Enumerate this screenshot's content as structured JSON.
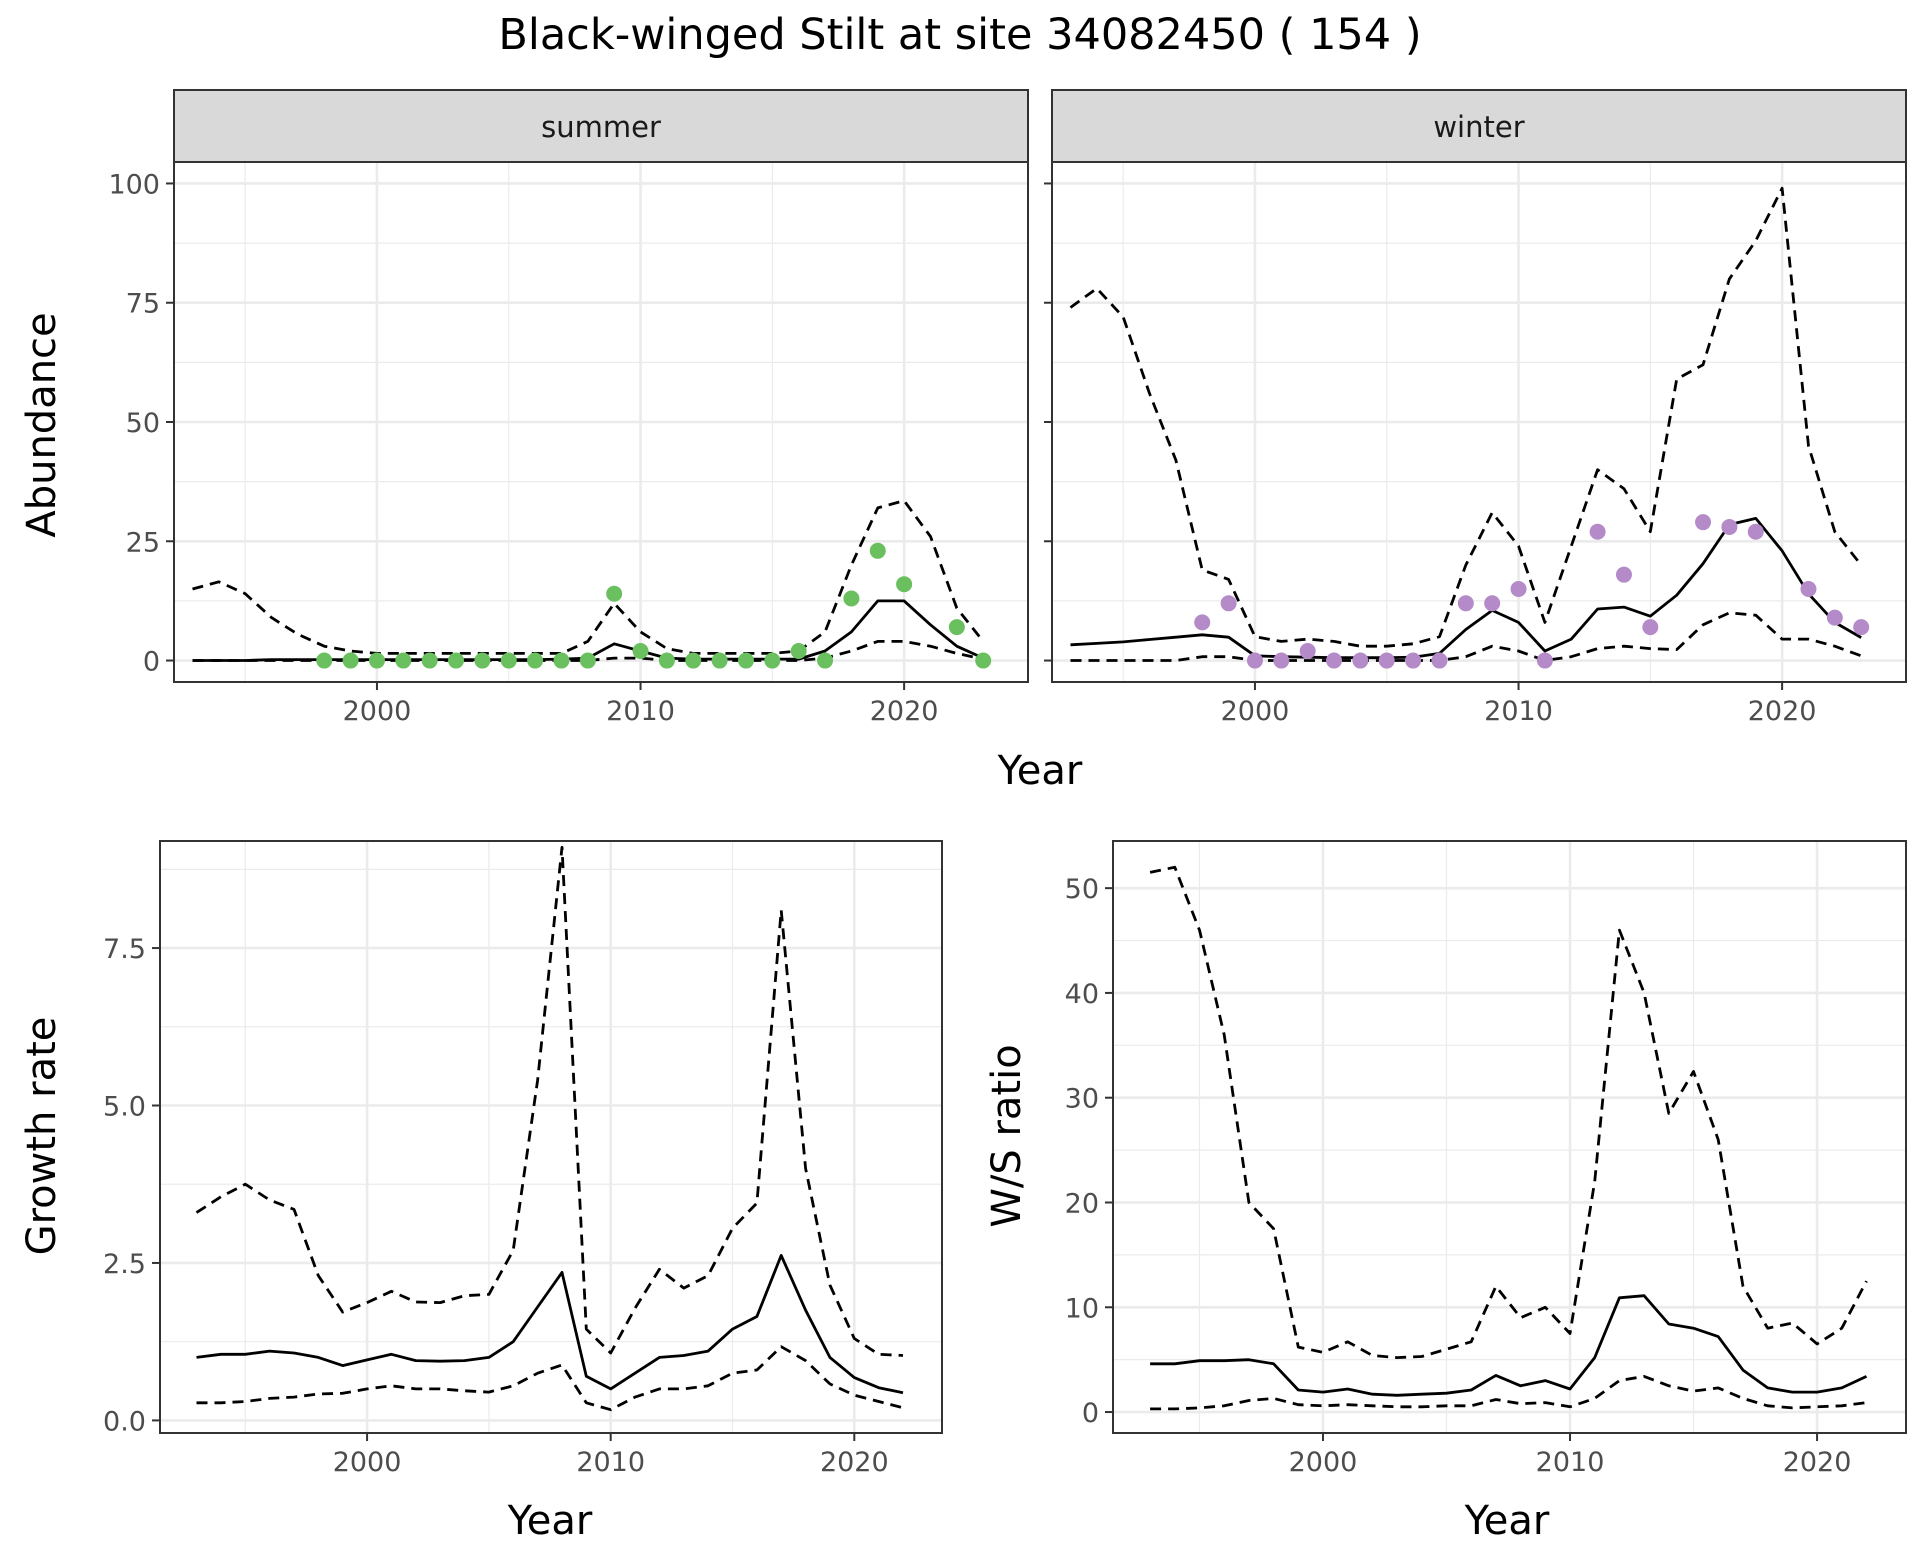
{
  "title": "Black-winged Stilt at site 34082450 ( 154 )",
  "abundance_panel": {
    "xlabel": "Year",
    "ylabel": "Abundance",
    "facets": [
      "summer",
      "winter"
    ]
  },
  "growth_panel": {
    "xlabel": "Year",
    "ylabel": "Growth rate"
  },
  "ratio_panel": {
    "xlabel": "Year",
    "ylabel": "W/S ratio"
  },
  "colors": {
    "summer_points": "#6abf5e",
    "winter_points": "#b48ac8",
    "lines": "#000000",
    "grid": "#ebebeb",
    "strip_bg": "#d9d9d9"
  },
  "chart_data": [
    {
      "type": "line",
      "facet": "summer",
      "xlabel": "Year",
      "ylabel": "Abundance",
      "xlim": [
        1992.3,
        2024.7
      ],
      "ylim": [
        -4.5,
        104.5
      ],
      "x_ticks": [
        2000,
        2010,
        2020
      ],
      "y_ticks": [
        0,
        25,
        50,
        75,
        100
      ],
      "grid": true,
      "lines": [
        {
          "role": "estimate",
          "style": "solid",
          "x": [
            1993,
            1994,
            1995,
            1996,
            1997,
            1998,
            1999,
            2000,
            2001,
            2002,
            2003,
            2004,
            2005,
            2006,
            2007,
            2008,
            2009,
            2010,
            2011,
            2012,
            2013,
            2014,
            2015,
            2016,
            2017,
            2018,
            2019,
            2020,
            2021,
            2022,
            2023
          ],
          "y": [
            0,
            0,
            0,
            0.2,
            0.2,
            0.2,
            0.2,
            0.2,
            0.2,
            0.2,
            0.2,
            0.2,
            0.2,
            0.2,
            0.3,
            0.5,
            3.5,
            2,
            0.5,
            0.3,
            0.3,
            0.3,
            0.3,
            0.3,
            2,
            6,
            12.5,
            12.5,
            7.5,
            3,
            0.5
          ]
        },
        {
          "role": "upper",
          "style": "dashed",
          "x": [
            1993,
            1994,
            1995,
            1996,
            1997,
            1998,
            1999,
            2000,
            2001,
            2002,
            2003,
            2004,
            2005,
            2006,
            2007,
            2008,
            2009,
            2010,
            2011,
            2012,
            2013,
            2014,
            2015,
            2016,
            2017,
            2018,
            2019,
            2020,
            2021,
            2022,
            2023
          ],
          "y": [
            15,
            16.5,
            14,
            9,
            5.5,
            3,
            2,
            1.5,
            1.5,
            1.5,
            1.5,
            1.5,
            1.5,
            1.5,
            1.5,
            4,
            12,
            6,
            2.5,
            1.5,
            1.5,
            1.5,
            1.5,
            2,
            6,
            20,
            32,
            33.5,
            26,
            11,
            4
          ]
        },
        {
          "role": "lower",
          "style": "dashed",
          "x": [
            1993,
            1994,
            1995,
            1996,
            1997,
            1998,
            1999,
            2000,
            2001,
            2002,
            2003,
            2004,
            2005,
            2006,
            2007,
            2008,
            2009,
            2010,
            2011,
            2012,
            2013,
            2014,
            2015,
            2016,
            2017,
            2018,
            2019,
            2020,
            2021,
            2022,
            2023
          ],
          "y": [
            0,
            0,
            0,
            0,
            0,
            0,
            0,
            0,
            0,
            0,
            0,
            0,
            0,
            0,
            0,
            0,
            0.5,
            0.5,
            0,
            0,
            0,
            0,
            0,
            0,
            0.5,
            2,
            4,
            4,
            3,
            1.5,
            0.3
          ]
        }
      ],
      "points": {
        "x": [
          1998,
          1999,
          2000,
          2001,
          2002,
          2003,
          2004,
          2005,
          2006,
          2007,
          2008,
          2009,
          2010,
          2011,
          2012,
          2013,
          2014,
          2015,
          2016,
          2017,
          2018,
          2019,
          2020,
          2022,
          2023
        ],
        "y": [
          0,
          0,
          0,
          0,
          0,
          0,
          0,
          0,
          0,
          0,
          0,
          14,
          2,
          0,
          0,
          0,
          0,
          0,
          2,
          0,
          13,
          23,
          16,
          7,
          0
        ]
      }
    },
    {
      "type": "line",
      "facet": "winter",
      "xlabel": "Year",
      "ylabel": "Abundance",
      "xlim": [
        1992.3,
        2024.7
      ],
      "ylim": [
        -4.5,
        104.5
      ],
      "x_ticks": [
        2000,
        2010,
        2020
      ],
      "y_ticks": [
        0,
        25,
        50,
        75,
        100
      ],
      "grid": true,
      "lines": [
        {
          "role": "estimate",
          "style": "solid",
          "x": [
            1993,
            1994,
            1995,
            1996,
            1997,
            1998,
            1999,
            2000,
            2001,
            2002,
            2003,
            2004,
            2005,
            2006,
            2007,
            2008,
            2009,
            2010,
            2011,
            2012,
            2013,
            2014,
            2015,
            2016,
            2017,
            2018,
            2019,
            2020,
            2021,
            2022,
            2023
          ],
          "y": [
            3.3,
            3.6,
            3.9,
            4.4,
            4.9,
            5.4,
            4.9,
            1,
            0.8,
            0.7,
            0.6,
            0.6,
            0.6,
            0.7,
            1.5,
            6.5,
            10.5,
            8,
            2,
            4.5,
            10.8,
            11.2,
            9.3,
            13.7,
            20.3,
            28.5,
            29.8,
            23,
            14,
            8,
            4.8
          ]
        },
        {
          "role": "upper",
          "style": "dashed",
          "x": [
            1993,
            1994,
            1995,
            1996,
            1997,
            1998,
            1999,
            2000,
            2001,
            2002,
            2003,
            2004,
            2005,
            2006,
            2007,
            2008,
            2009,
            2010,
            2011,
            2012,
            2013,
            2014,
            2015,
            2016,
            2017,
            2018,
            2019,
            2020,
            2021,
            2022,
            2023
          ],
          "y": [
            74,
            78,
            72,
            56,
            42,
            19,
            17,
            5,
            4,
            4.5,
            4,
            3,
            3,
            3.5,
            5,
            20,
            31,
            24,
            8,
            24,
            40,
            36,
            27,
            59,
            62,
            80,
            88,
            99,
            45,
            27,
            20
          ]
        },
        {
          "role": "lower",
          "style": "dashed",
          "x": [
            1993,
            1994,
            1995,
            1996,
            1997,
            1998,
            1999,
            2000,
            2001,
            2002,
            2003,
            2004,
            2005,
            2006,
            2007,
            2008,
            2009,
            2010,
            2011,
            2012,
            2013,
            2014,
            2015,
            2016,
            2017,
            2018,
            2019,
            2020,
            2021,
            2022,
            2023
          ],
          "y": [
            0,
            0,
            0,
            0,
            0,
            0.8,
            0.8,
            0,
            0,
            0,
            0,
            0,
            0,
            0,
            0,
            0.8,
            3,
            2,
            0,
            0.8,
            2.5,
            3,
            2.5,
            2.3,
            7.5,
            10,
            9.5,
            4.5,
            4.5,
            3,
            1
          ]
        }
      ],
      "points": {
        "x": [
          1998,
          1999,
          2000,
          2001,
          2002,
          2003,
          2004,
          2005,
          2006,
          2007,
          2008,
          2009,
          2010,
          2011,
          2013,
          2014,
          2015,
          2017,
          2018,
          2019,
          2021,
          2022,
          2023
        ],
        "y": [
          8,
          12,
          0,
          0,
          2,
          0,
          0,
          0,
          0,
          0,
          12,
          12,
          15,
          0,
          27,
          18,
          7,
          29,
          28,
          27,
          15,
          9,
          7
        ]
      }
    },
    {
      "type": "line",
      "xlabel": "Year",
      "ylabel": "Growth rate",
      "xlim": [
        1991.5,
        2023.6
      ],
      "ylim": [
        -0.2,
        9.2
      ],
      "x_ticks": [
        2000,
        2010,
        2020
      ],
      "y_ticks": [
        0.0,
        2.5,
        5.0,
        7.5
      ],
      "y_tick_labels": [
        "0.0",
        "2.5",
        "5.0",
        "7.5"
      ],
      "grid": true,
      "lines": [
        {
          "role": "estimate",
          "style": "solid",
          "x": [
            1993,
            1994,
            1995,
            1996,
            1997,
            1998,
            1999,
            2000,
            2001,
            2002,
            2003,
            2004,
            2005,
            2006,
            2007,
            2008,
            2009,
            2010,
            2011,
            2012,
            2013,
            2014,
            2015,
            2016,
            2017,
            2018,
            2019,
            2020,
            2021,
            2022
          ],
          "y": [
            1,
            1.05,
            1.05,
            1.1,
            1.07,
            1,
            0.87,
            0.96,
            1.05,
            0.95,
            0.94,
            0.95,
            1,
            1.25,
            1.8,
            2.35,
            0.7,
            0.5,
            0.75,
            1,
            1.03,
            1.1,
            1.45,
            1.65,
            2.62,
            1.75,
            1,
            0.68,
            0.52,
            0.44
          ]
        },
        {
          "role": "upper",
          "style": "dashed",
          "x": [
            1993,
            1994,
            1995,
            1996,
            1997,
            1998,
            1999,
            2000,
            2001,
            2002,
            2003,
            2004,
            2005,
            2006,
            2007,
            2008,
            2009,
            2010,
            2011,
            2012,
            2013,
            2014,
            2015,
            2016,
            2017,
            2018,
            2019,
            2020,
            2021,
            2022
          ],
          "y": [
            3.3,
            3.55,
            3.75,
            3.5,
            3.35,
            2.3,
            1.72,
            1.87,
            2.05,
            1.88,
            1.87,
            1.98,
            2,
            2.7,
            5.4,
            9.1,
            1.45,
            1.07,
            1.78,
            2.4,
            2.1,
            2.3,
            3.05,
            3.45,
            8.1,
            4,
            2.15,
            1.3,
            1.05,
            1.03
          ]
        },
        {
          "role": "lower",
          "style": "dashed",
          "x": [
            1993,
            1994,
            1995,
            1996,
            1997,
            1998,
            1999,
            2000,
            2001,
            2002,
            2003,
            2004,
            2005,
            2006,
            2007,
            2008,
            2009,
            2010,
            2011,
            2012,
            2013,
            2014,
            2015,
            2016,
            2017,
            2018,
            2019,
            2020,
            2021,
            2022
          ],
          "y": [
            0.28,
            0.28,
            0.3,
            0.35,
            0.37,
            0.42,
            0.43,
            0.5,
            0.55,
            0.5,
            0.5,
            0.47,
            0.45,
            0.55,
            0.75,
            0.88,
            0.28,
            0.17,
            0.37,
            0.5,
            0.5,
            0.55,
            0.75,
            0.8,
            1.17,
            0.95,
            0.58,
            0.4,
            0.3,
            0.2
          ]
        }
      ]
    },
    {
      "type": "line",
      "xlabel": "Year",
      "ylabel": "W/S ratio",
      "xlim": [
        1991.5,
        2023.6
      ],
      "ylim": [
        -2,
        54.5
      ],
      "x_ticks": [
        2000,
        2010,
        2020
      ],
      "y_ticks": [
        0,
        10,
        20,
        30,
        40,
        50
      ],
      "grid": true,
      "lines": [
        {
          "role": "estimate",
          "style": "solid",
          "x": [
            1993,
            1994,
            1995,
            1996,
            1997,
            1998,
            1999,
            2000,
            2001,
            2002,
            2003,
            2004,
            2005,
            2006,
            2007,
            2008,
            2009,
            2010,
            2011,
            2012,
            2013,
            2014,
            2015,
            2016,
            2017,
            2018,
            2019,
            2020,
            2021,
            2022
          ],
          "y": [
            4.6,
            4.6,
            4.9,
            4.9,
            5,
            4.6,
            2.1,
            1.9,
            2.2,
            1.7,
            1.6,
            1.7,
            1.8,
            2.1,
            3.5,
            2.5,
            3,
            2.2,
            5.2,
            10.9,
            11.1,
            8.4,
            8,
            7.2,
            4,
            2.3,
            1.9,
            1.9,
            2.3,
            3.4
          ]
        },
        {
          "role": "upper",
          "style": "dashed",
          "x": [
            1993,
            1994,
            1995,
            1996,
            1997,
            1998,
            1999,
            2000,
            2001,
            2002,
            2003,
            2004,
            2005,
            2006,
            2007,
            2008,
            2009,
            2010,
            2011,
            2012,
            2013,
            2014,
            2015,
            2016,
            2017,
            2018,
            2019,
            2020,
            2021,
            2022
          ],
          "y": [
            51.5,
            52,
            46,
            36,
            20,
            17.5,
            6.2,
            5.7,
            6.7,
            5.4,
            5.2,
            5.3,
            6,
            6.7,
            12,
            9,
            10,
            7.5,
            22,
            46,
            40,
            28.5,
            32.5,
            26,
            12,
            8,
            8.5,
            6.5,
            8,
            12.5
          ]
        },
        {
          "role": "lower",
          "style": "dashed",
          "x": [
            1993,
            1994,
            1995,
            1996,
            1997,
            1998,
            1999,
            2000,
            2001,
            2002,
            2003,
            2004,
            2005,
            2006,
            2007,
            2008,
            2009,
            2010,
            2011,
            2012,
            2013,
            2014,
            2015,
            2016,
            2017,
            2018,
            2019,
            2020,
            2021,
            2022
          ],
          "y": [
            0.3,
            0.3,
            0.4,
            0.6,
            1.1,
            1.3,
            0.7,
            0.6,
            0.7,
            0.6,
            0.5,
            0.5,
            0.6,
            0.6,
            1.2,
            0.8,
            0.9,
            0.5,
            1.3,
            3,
            3.4,
            2.5,
            2,
            2.3,
            1.3,
            0.6,
            0.4,
            0.5,
            0.6,
            0.9
          ]
        }
      ]
    }
  ]
}
